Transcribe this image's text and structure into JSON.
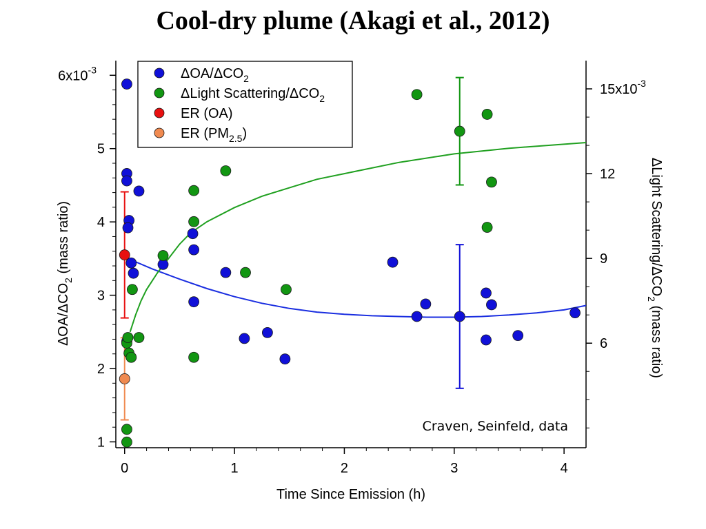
{
  "title": "Cool-dry plume (Akagi et al., 2012)",
  "chart_data": {
    "type": "scatter",
    "x_axis": {
      "label": "Time Since Emission (h)",
      "range": [
        -0.08,
        4.2
      ],
      "ticks": [
        0,
        1,
        2,
        3,
        4
      ],
      "tick_labels": [
        "0",
        "1",
        "2",
        "3",
        "4"
      ]
    },
    "y_left": {
      "label_parts": [
        "ΔOA/ΔCO",
        "2",
        " (mass ratio)"
      ],
      "range": [
        0.92,
        6.2
      ],
      "ticks": [
        1,
        2,
        3,
        4,
        5,
        6
      ],
      "tick_labels": [
        "1",
        "2",
        "3",
        "4",
        "5",
        "6x10"
      ],
      "multiplier_exponent": "-3"
    },
    "y_right": {
      "label_parts": [
        "ΔLight Scattering/ΔCO",
        "2",
        " (mass ratio)"
      ],
      "range": [
        2.3,
        16.0
      ],
      "ticks": [
        6,
        9,
        12,
        15
      ],
      "tick_labels": [
        "6",
        "9",
        "12",
        "15x10"
      ],
      "multiplier_exponent": "-3"
    },
    "legend": {
      "position": "top-left",
      "items": [
        {
          "label_parts": [
            "ΔOA/ΔCO",
            "2",
            ""
          ],
          "color": "#1010d8"
        },
        {
          "label_parts": [
            "ΔLight Scattering/ΔCO",
            "2",
            ""
          ],
          "color": "#129612"
        },
        {
          "label_parts": [
            "ER (OA)",
            "",
            ""
          ],
          "color": "#e81010"
        },
        {
          "label_parts": [
            "ER (PM",
            "2.5",
            ")"
          ],
          "color": "#f08a50"
        }
      ]
    },
    "series": [
      {
        "name": "ΔOA/ΔCO2",
        "axis": "left",
        "color": "#1010d8",
        "points": [
          [
            0.02,
            5.88
          ],
          [
            0.02,
            4.66
          ],
          [
            0.02,
            4.56
          ],
          [
            0.04,
            4.02
          ],
          [
            0.03,
            3.92
          ],
          [
            0.06,
            3.44
          ],
          [
            0.08,
            3.3
          ],
          [
            0.13,
            4.42
          ],
          [
            0.02,
            2.37
          ],
          [
            0.35,
            3.42
          ],
          [
            0.62,
            3.84
          ],
          [
            0.63,
            3.62
          ],
          [
            0.63,
            2.91
          ],
          [
            0.92,
            3.31
          ],
          [
            1.09,
            2.41
          ],
          [
            1.3,
            2.49
          ],
          [
            1.46,
            2.13
          ],
          [
            2.44,
            3.45
          ],
          [
            2.66,
            2.71
          ],
          [
            2.74,
            2.88
          ],
          [
            3.05,
            2.71
          ],
          [
            3.29,
            3.03
          ],
          [
            3.29,
            2.39
          ],
          [
            3.34,
            2.87
          ],
          [
            3.58,
            2.45
          ],
          [
            4.1,
            2.76
          ]
        ],
        "error_bar": {
          "x": 3.05,
          "low": 1.73,
          "high": 3.69
        }
      },
      {
        "name": "ΔLight Scattering/ΔCO2",
        "axis": "right",
        "color": "#129612",
        "points": [
          [
            0.02,
            2.5
          ],
          [
            0.02,
            2.95
          ],
          [
            0.02,
            6.0
          ],
          [
            0.03,
            6.2
          ],
          [
            0.04,
            5.65
          ],
          [
            0.06,
            5.5
          ],
          [
            0.07,
            7.9
          ],
          [
            0.13,
            6.2
          ],
          [
            0.35,
            9.1
          ],
          [
            0.63,
            11.4
          ],
          [
            0.63,
            10.3
          ],
          [
            0.63,
            5.5
          ],
          [
            0.92,
            12.1
          ],
          [
            1.1,
            8.5
          ],
          [
            1.47,
            7.9
          ],
          [
            2.66,
            14.8
          ],
          [
            3.05,
            13.5
          ],
          [
            3.3,
            14.1
          ],
          [
            3.3,
            10.1
          ],
          [
            3.34,
            11.7
          ]
        ],
        "error_bar": {
          "x": 3.05,
          "low": 11.6,
          "high": 15.4
        }
      },
      {
        "name": "ER (OA)",
        "axis": "left",
        "color": "#e81010",
        "points": [
          [
            0.0,
            3.55
          ]
        ],
        "error_bar": {
          "x": 0.0,
          "low": 2.69,
          "high": 4.41
        }
      },
      {
        "name": "ER (PM2.5)",
        "axis": "left",
        "color": "#f08a50",
        "points": [
          [
            0.0,
            1.86
          ]
        ],
        "error_bar": {
          "x": 0.0,
          "low": 1.3,
          "high": 2.42
        }
      }
    ],
    "fit_curves": [
      {
        "name": "OA fit",
        "axis": "left",
        "color": "#1a2ee0",
        "points": [
          [
            0.0,
            3.52
          ],
          [
            0.25,
            3.36
          ],
          [
            0.5,
            3.22
          ],
          [
            0.75,
            3.09
          ],
          [
            1.0,
            2.98
          ],
          [
            1.25,
            2.89
          ],
          [
            1.5,
            2.82
          ],
          [
            1.75,
            2.77
          ],
          [
            2.0,
            2.74
          ],
          [
            2.25,
            2.72
          ],
          [
            2.5,
            2.71
          ],
          [
            2.75,
            2.7
          ],
          [
            3.0,
            2.7
          ],
          [
            3.25,
            2.71
          ],
          [
            3.5,
            2.73
          ],
          [
            3.75,
            2.76
          ],
          [
            4.0,
            2.8
          ],
          [
            4.2,
            2.86
          ]
        ]
      },
      {
        "name": "Light scattering fit",
        "axis": "right",
        "color": "#20a020",
        "points": [
          [
            0.05,
            6.4
          ],
          [
            0.1,
            7.0
          ],
          [
            0.15,
            7.5
          ],
          [
            0.2,
            7.9
          ],
          [
            0.3,
            8.5
          ],
          [
            0.4,
            9.0
          ],
          [
            0.5,
            9.5
          ],
          [
            0.6,
            9.9
          ],
          [
            0.75,
            10.3
          ],
          [
            1.0,
            10.8
          ],
          [
            1.25,
            11.2
          ],
          [
            1.5,
            11.5
          ],
          [
            1.75,
            11.8
          ],
          [
            2.0,
            12.0
          ],
          [
            2.5,
            12.4
          ],
          [
            3.0,
            12.7
          ],
          [
            3.5,
            12.9
          ],
          [
            4.2,
            13.1
          ]
        ]
      }
    ],
    "annotation": "Craven, Seinfeld, data"
  }
}
